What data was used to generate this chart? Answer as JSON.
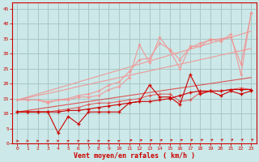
{
  "xlabel": "Vent moyen/en rafales ( km/h )",
  "bg_color": "#cce8e8",
  "grid_color": "#a8c8c8",
  "line_color_dark": "#cc0000",
  "line_color_mid": "#dd5555",
  "line_color_light": "#ee9999",
  "x": [
    0,
    1,
    2,
    3,
    4,
    5,
    6,
    7,
    8,
    9,
    10,
    11,
    12,
    13,
    14,
    15,
    16,
    17,
    18,
    19,
    20,
    21,
    22,
    23
  ],
  "y_trend1": [
    10.5,
    10.5,
    10.5,
    10.5,
    10.5,
    11.0,
    11.0,
    11.5,
    12.0,
    12.5,
    13.0,
    13.5,
    14.0,
    14.0,
    14.5,
    15.0,
    16.0,
    17.0,
    17.5,
    17.5,
    17.5,
    18.0,
    18.0,
    18.0
  ],
  "y_trend2": [
    10.5,
    10.5,
    10.5,
    10.5,
    11.0,
    11.5,
    12.0,
    13.0,
    13.5,
    13.5,
    14.0,
    14.5,
    15.0,
    16.0,
    16.5,
    16.5,
    14.0,
    14.5,
    17.0,
    17.5,
    17.5,
    18.0,
    18.5,
    18.0
  ],
  "y_trend3": [
    10.5,
    10.5,
    10.5,
    10.5,
    3.5,
    9.0,
    6.5,
    10.5,
    10.5,
    10.5,
    10.5,
    13.5,
    14.0,
    19.5,
    15.5,
    15.5,
    13.0,
    23.0,
    16.5,
    17.5,
    16.0,
    17.5,
    16.5,
    17.5
  ],
  "y_trend4_light": [
    14.5,
    14.5,
    14.5,
    13.5,
    14.5,
    14.5,
    15.5,
    15.5,
    16.0,
    18.0,
    19.0,
    22.0,
    33.0,
    27.0,
    35.5,
    31.0,
    25.0,
    32.5,
    32.5,
    35.0,
    34.0,
    36.5,
    23.0,
    43.5
  ],
  "y_trend5_light": [
    14.5,
    14.5,
    14.5,
    14.0,
    14.5,
    15.0,
    16.0,
    16.5,
    17.5,
    19.5,
    20.5,
    24.0,
    28.0,
    28.5,
    33.5,
    31.5,
    28.0,
    32.0,
    33.5,
    34.5,
    35.0,
    35.5,
    26.5,
    43.5
  ],
  "y_linear1": [
    10.5,
    11.0,
    11.5,
    12.0,
    12.5,
    13.0,
    13.5,
    14.0,
    14.5,
    15.0,
    15.5,
    16.0,
    16.5,
    17.0,
    17.5,
    18.0,
    18.5,
    19.0,
    19.5,
    20.0,
    20.5,
    21.0,
    21.5,
    22.0
  ],
  "y_linear2": [
    14.5,
    15.2,
    16.0,
    16.7,
    17.4,
    18.2,
    19.0,
    19.7,
    20.5,
    21.2,
    22.0,
    22.7,
    23.5,
    24.2,
    25.0,
    25.7,
    26.5,
    27.2,
    28.0,
    28.7,
    29.5,
    30.2,
    31.0,
    31.7
  ],
  "y_linear3": [
    14.5,
    15.5,
    16.5,
    17.5,
    18.5,
    19.5,
    20.5,
    21.5,
    22.5,
    23.5,
    24.5,
    25.5,
    26.5,
    27.5,
    28.5,
    29.5,
    30.5,
    31.5,
    32.5,
    33.5,
    34.5,
    35.5,
    36.5,
    37.5
  ],
  "ylim": [
    0,
    47
  ],
  "yticks": [
    0,
    5,
    10,
    15,
    20,
    25,
    30,
    35,
    40,
    45
  ]
}
